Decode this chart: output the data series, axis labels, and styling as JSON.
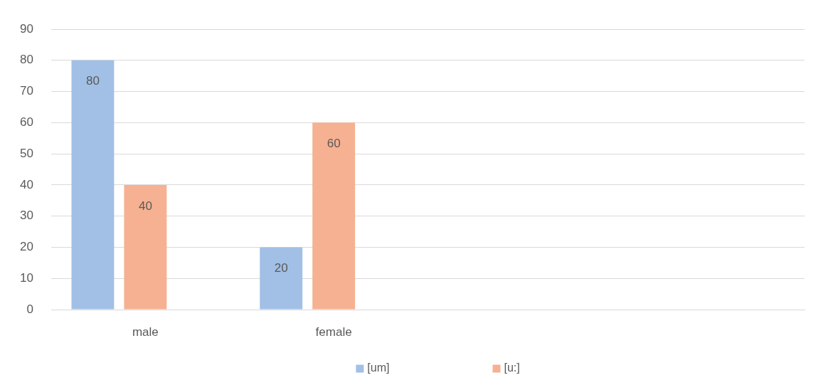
{
  "chart_data": {
    "type": "bar",
    "categories": [
      "male",
      "female",
      null,
      null
    ],
    "series": [
      {
        "name": "[um]",
        "color": "#a2c0e5",
        "values": [
          80,
          20,
          null,
          null
        ]
      },
      {
        "name": "[u:]",
        "color": "#f5b192",
        "values": [
          40,
          60,
          null,
          null
        ]
      }
    ],
    "ylim": [
      0,
      90
    ],
    "yticks": [
      0,
      10,
      20,
      30,
      40,
      50,
      60,
      70,
      80,
      90
    ],
    "grid": "y",
    "legend": "bottom",
    "data_labels": true
  }
}
